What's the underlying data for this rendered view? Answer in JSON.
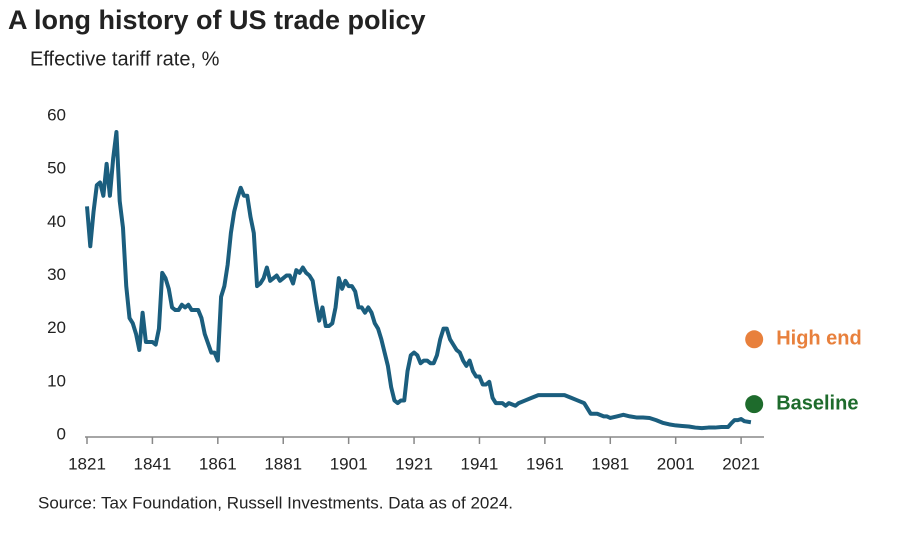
{
  "chart_data": {
    "type": "line",
    "title": "A long history of US trade policy",
    "subtitle": "Effective tariff rate, %",
    "source": "Source: Tax Foundation, Russell Investments. Data as of 2024.",
    "x": [
      1821,
      1822,
      1823,
      1824,
      1825,
      1826,
      1827,
      1828,
      1829,
      1830,
      1831,
      1832,
      1833,
      1834,
      1835,
      1836,
      1837,
      1838,
      1839,
      1841,
      1842,
      1843,
      1844,
      1845,
      1846,
      1847,
      1848,
      1849,
      1850,
      1851,
      1852,
      1853,
      1855,
      1856,
      1857,
      1859,
      1860,
      1861,
      1862,
      1863,
      1864,
      1865,
      1866,
      1867,
      1868,
      1869,
      1870,
      1871,
      1872,
      1873,
      1874,
      1875,
      1876,
      1877,
      1878,
      1879,
      1880,
      1881,
      1882,
      1883,
      1884,
      1885,
      1886,
      1887,
      1888,
      1889,
      1890,
      1891,
      1892,
      1893,
      1894,
      1895,
      1896,
      1897,
      1898,
      1899,
      1900,
      1901,
      1902,
      1903,
      1904,
      1905,
      1906,
      1907,
      1908,
      1909,
      1910,
      1911,
      1912,
      1913,
      1914,
      1915,
      1916,
      1917,
      1918,
      1919,
      1920,
      1921,
      1922,
      1923,
      1924,
      1925,
      1926,
      1927,
      1928,
      1929,
      1930,
      1931,
      1932,
      1933,
      1934,
      1935,
      1936,
      1937,
      1938,
      1939,
      1940,
      1941,
      1942,
      1943,
      1944,
      1945,
      1946,
      1948,
      1949,
      1950,
      1952,
      1953,
      1955,
      1957,
      1959,
      1961,
      1963,
      1965,
      1967,
      1969,
      1971,
      1973,
      1975,
      1977,
      1979,
      1980,
      1981,
      1983,
      1985,
      1987,
      1989,
      1991,
      1993,
      1995,
      1997,
      1999,
      2001,
      2003,
      2005,
      2007,
      2009,
      2011,
      2013,
      2015,
      2017,
      2018,
      2019,
      2020,
      2021,
      2022,
      2024
    ],
    "series": [
      {
        "name": "Effective tariff rate",
        "color": "#1b5e7e",
        "values": [
          43,
          35.5,
          42,
          47,
          47.5,
          45,
          51,
          45,
          52,
          57,
          44,
          39,
          28,
          22,
          21,
          19,
          16,
          23,
          17.5,
          17.5,
          17,
          20,
          30.5,
          29.5,
          27.5,
          24,
          23.5,
          23.5,
          24.5,
          24,
          24.5,
          23.5,
          23.5,
          22,
          19,
          15.5,
          15.5,
          14,
          26,
          28,
          32,
          38,
          42,
          44.5,
          46.5,
          45,
          45,
          41,
          38,
          28,
          28.5,
          29.5,
          31.5,
          29,
          29.5,
          30,
          29,
          29.5,
          30,
          30,
          28.5,
          31,
          30.5,
          31.5,
          30.5,
          30,
          29,
          25,
          21.5,
          24,
          20.5,
          20.5,
          21,
          24,
          29.5,
          27.5,
          29,
          28,
          28,
          27,
          24,
          24,
          23,
          24,
          23,
          21,
          20,
          18,
          15.5,
          13,
          9,
          6.5,
          6,
          6.5,
          6.5,
          12,
          15,
          15.5,
          15,
          13.5,
          14,
          14,
          13.5,
          13.5,
          15,
          18,
          20,
          20,
          18,
          17,
          16,
          15.5,
          14,
          13,
          14,
          12,
          11,
          11,
          9.5,
          9.5,
          10,
          7,
          6,
          6,
          5.5,
          6,
          5.5,
          6,
          6.5,
          7,
          7.5,
          7.5,
          7.5,
          7.5,
          7.5,
          7,
          6.5,
          6,
          4,
          4,
          3.5,
          3.5,
          3.2,
          3.5,
          3.8,
          3.5,
          3.3,
          3.3,
          3.2,
          2.8,
          2.3,
          2,
          1.8,
          1.7,
          1.6,
          1.4,
          1.3,
          1.4,
          1.4,
          1.5,
          1.5,
          2.2,
          2.8,
          2.8,
          3,
          2.6,
          2.4
        ]
      }
    ],
    "points": [
      {
        "name": "High end",
        "x": 2025,
        "value": 18,
        "color": "#e8803c"
      },
      {
        "name": "Baseline",
        "x": 2025,
        "value": 5.8,
        "color": "#1e6b2c"
      }
    ],
    "xlim": [
      1821,
      2028
    ],
    "ylim": [
      0,
      60
    ],
    "xticks": [
      1821,
      1841,
      1861,
      1881,
      1901,
      1921,
      1941,
      1961,
      1981,
      2001,
      2021
    ],
    "yticks": [
      0,
      10,
      20,
      30,
      40,
      50,
      60
    ]
  }
}
